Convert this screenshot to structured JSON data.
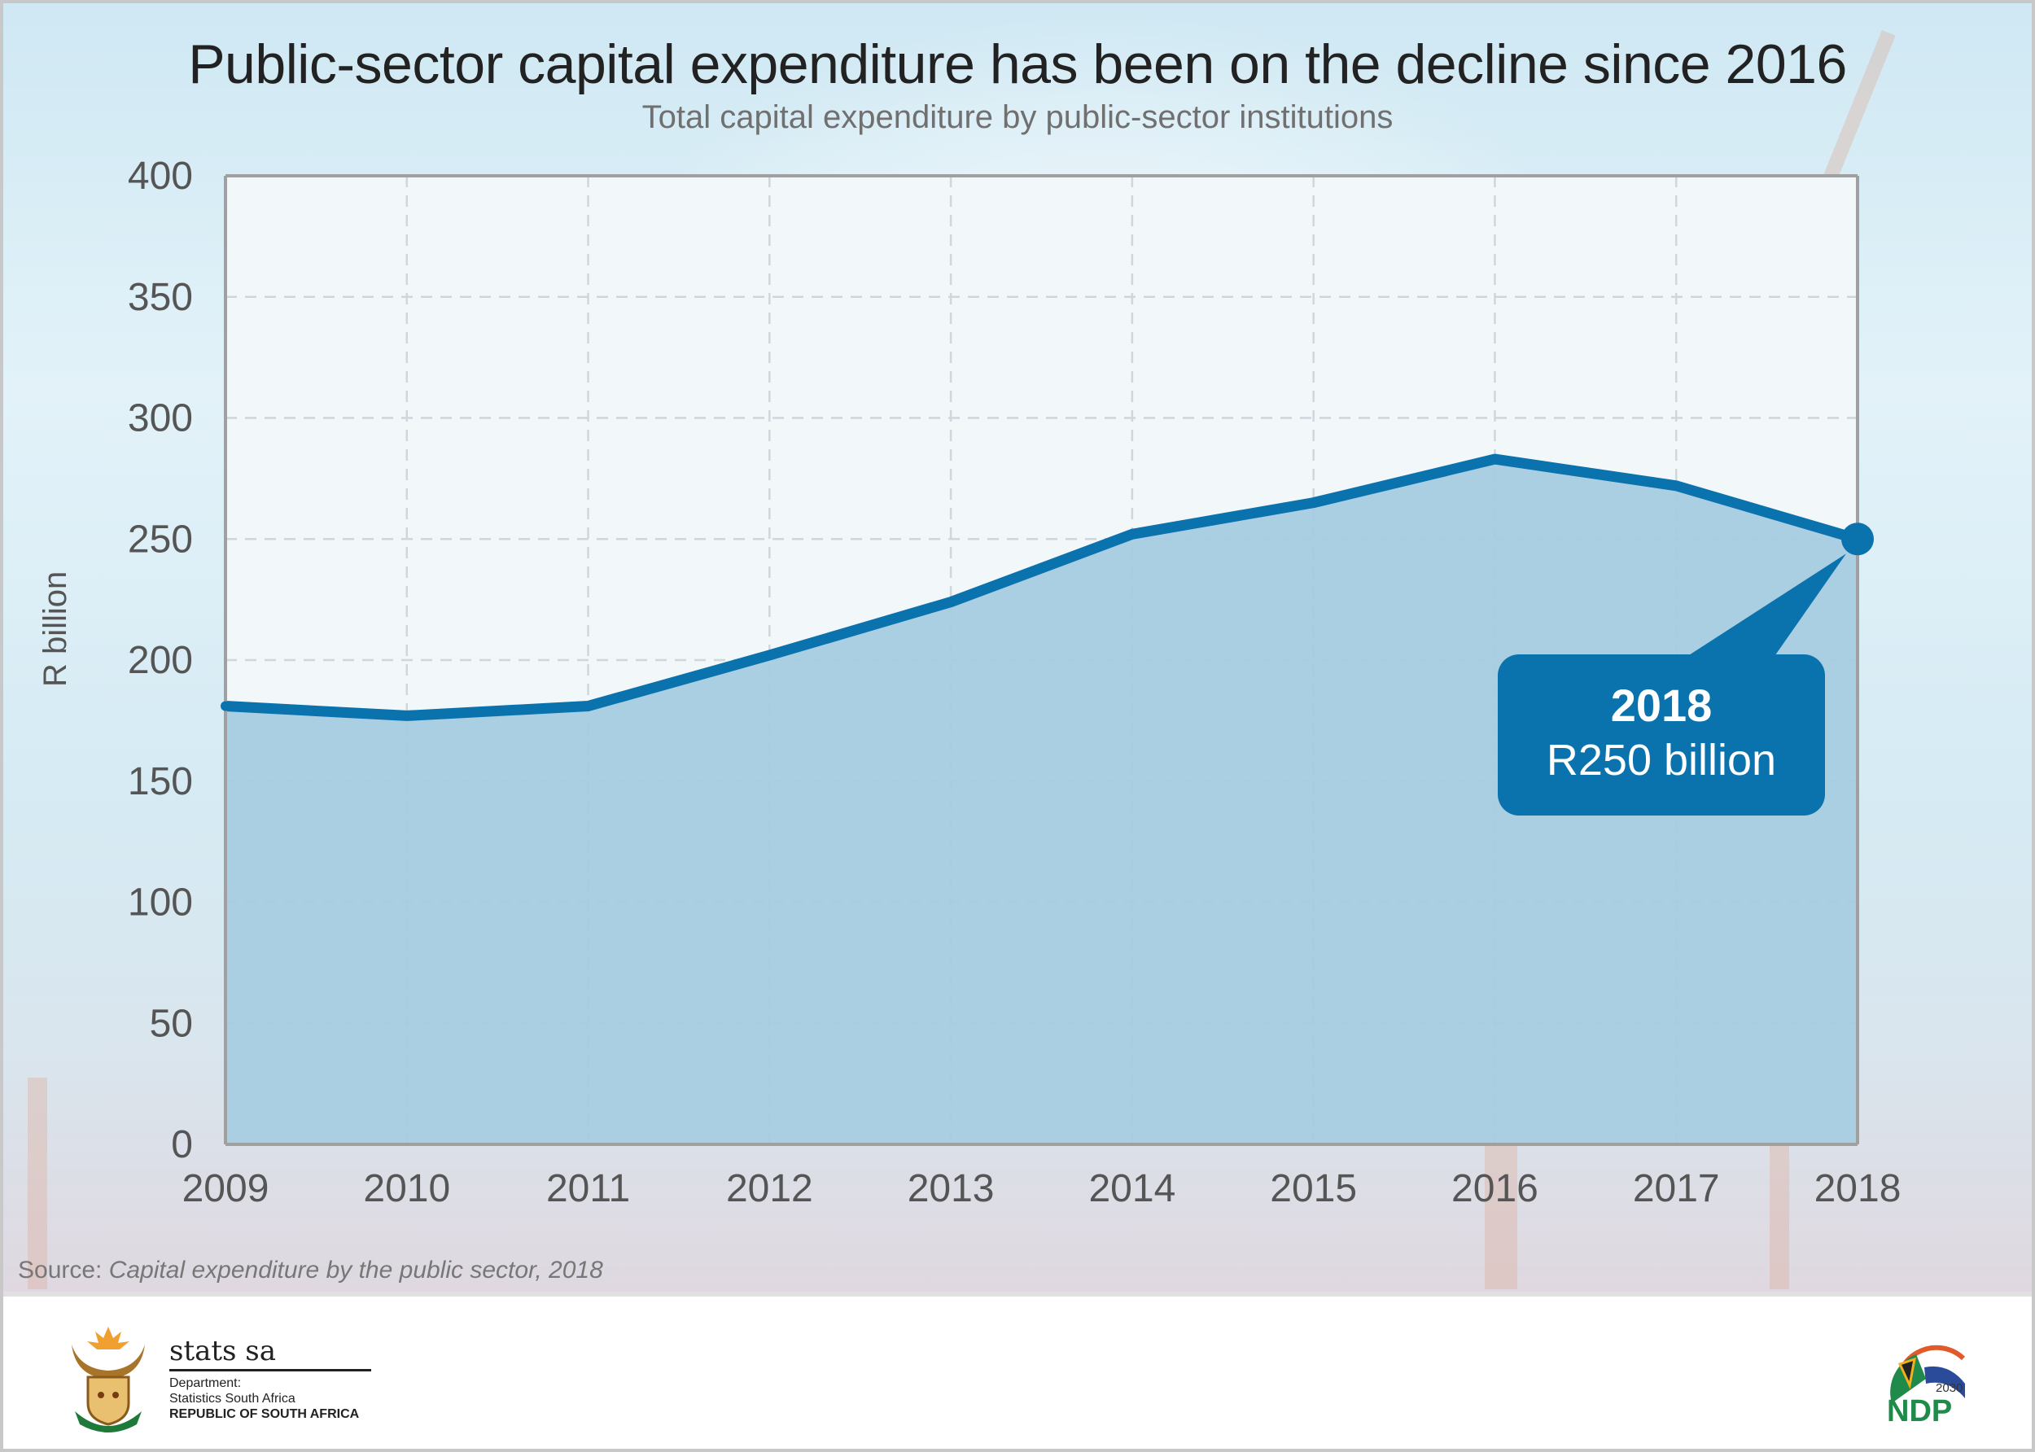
{
  "header": {
    "title": "Public-sector capital expenditure has been on the decline since 2016",
    "subtitle": "Total capital expenditure by public-sector institutions"
  },
  "chart_data": {
    "type": "area",
    "title": "Public-sector capital expenditure has been on the decline since 2016",
    "subtitle": "Total capital expenditure by public-sector institutions",
    "xlabel": "",
    "ylabel": "R billion",
    "categories": [
      "2009",
      "2010",
      "2011",
      "2012",
      "2013",
      "2014",
      "2015",
      "2016",
      "2017",
      "2018"
    ],
    "series": [
      {
        "name": "Total capital expenditure",
        "values": [
          181,
          177,
          181,
          202,
          224,
          252,
          265,
          283,
          272,
          250
        ]
      }
    ],
    "ylim": [
      0,
      400
    ],
    "yticks": [
      0,
      50,
      100,
      150,
      200,
      250,
      300,
      350,
      400
    ],
    "ytick_labels": [
      "0",
      "50",
      "100",
      "150",
      "200",
      "250",
      "300",
      "350",
      "400"
    ],
    "grid": true,
    "legend": "none",
    "annotation": {
      "category": "2018",
      "year_label": "2018",
      "value_label": "R250 billion"
    },
    "colors": {
      "line": "#0a72ad",
      "area": "#a5cbe0",
      "plot_bg": "#f2f7fa",
      "grid": "#cfd6dc"
    }
  },
  "source": {
    "prefix": "Source:",
    "title": "Capital expenditure by the public sector, 2018"
  },
  "footer": {
    "org_name": "stats sa",
    "dept_line1": "Department:",
    "dept_line2": "Statistics South Africa",
    "dept_line3": "REPUBLIC OF SOUTH AFRICA",
    "ndp_year": "2030",
    "ndp_text": "NDP"
  }
}
